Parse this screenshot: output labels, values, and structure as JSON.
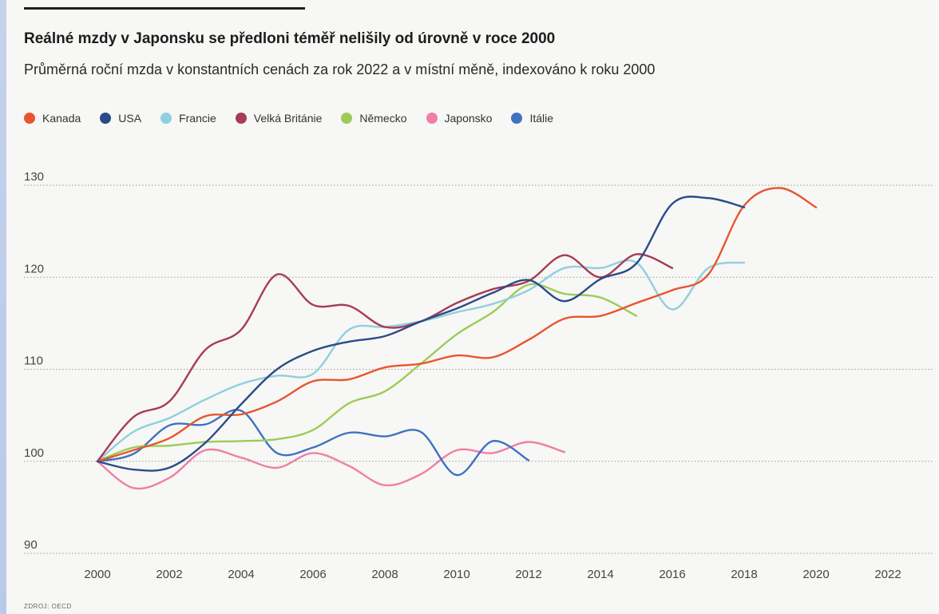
{
  "header": {
    "title": "Reálné mzdy v Japonsku se předloni téměř nelišily od úrovně v roce 2000",
    "subtitle": "Průměrná roční mzda v konstantních cenách za rok 2022 a v místní měně, indexováno k roku 2000"
  },
  "source": "ZDROJ: OECD",
  "chart_data": {
    "type": "line",
    "title": "Reálné mzdy v Japonsku se předloni téměř nelišily od úrovně v roce 2000",
    "subtitle": "Průměrná roční mzda v konstantních cenách za rok 2022 a v místní měně, indexováno k roku 2000",
    "xlabel": "",
    "ylabel": "",
    "x": [
      2000,
      2001,
      2002,
      2003,
      2004,
      2005,
      2006,
      2007,
      2008,
      2009,
      2010,
      2011,
      2012,
      2013,
      2014,
      2015,
      2016,
      2017,
      2018,
      2019,
      2020,
      2021,
      2022
    ],
    "x_ticks": [
      "2000",
      "2002",
      "2004",
      "2006",
      "2008",
      "2010",
      "2012",
      "2014",
      "2016",
      "2018",
      "2020",
      "2022"
    ],
    "y_ticks": [
      "90",
      "100",
      "110",
      "120",
      "130"
    ],
    "xlim": [
      2000,
      2022
    ],
    "ylim": [
      90,
      130
    ],
    "grid": "horizontal dotted",
    "legend_position": "top",
    "series": [
      {
        "name": "Kanada",
        "color": "#e8552f",
        "values": [
          100,
          101.2,
          102.5,
          104.9,
          105.1,
          106.5,
          108.7,
          108.9,
          110.2,
          110.6,
          111.5,
          111.3,
          113.2,
          115.5,
          115.8,
          117.2,
          118.6,
          120.3,
          127.8,
          129.7,
          127.6,
          null,
          null
        ]
      },
      {
        "name": "USA",
        "color": "#2c4a8a",
        "values": [
          100,
          99.1,
          99.3,
          102,
          106.2,
          110,
          112,
          113,
          113.6,
          115.2,
          116.6,
          118.3,
          119.7,
          117.4,
          119.8,
          121.5,
          128,
          128.6,
          127.6,
          null,
          null,
          null,
          null
        ]
      },
      {
        "name": "Francie",
        "color": "#8fd0de",
        "values": [
          100,
          103.2,
          104.7,
          106.7,
          108.4,
          109.3,
          109.5,
          114.3,
          114.6,
          115.2,
          116.2,
          117.1,
          118.6,
          121,
          121,
          121.6,
          116.5,
          121,
          121.6,
          null,
          null,
          null,
          null
        ]
      },
      {
        "name": "Velká Británie",
        "color": "#a63c55",
        "values": [
          100,
          104.8,
          106.5,
          112.1,
          114.3,
          120.3,
          117,
          116.9,
          114.6,
          115.2,
          117.2,
          118.7,
          119.6,
          122.4,
          120,
          122.5,
          121,
          null,
          null,
          null,
          null,
          null,
          null
        ]
      },
      {
        "name": "Německo",
        "color": "#9ccc56",
        "values": [
          100,
          101.5,
          101.7,
          102.1,
          102.2,
          102.4,
          103.4,
          106.3,
          107.6,
          110.6,
          113.8,
          116.2,
          119.2,
          118.2,
          117.8,
          115.8,
          null,
          null,
          null,
          null,
          null,
          null,
          null
        ]
      },
      {
        "name": "Japonsko",
        "color": "#ef7fa5",
        "values": [
          100,
          97.1,
          98.2,
          101.2,
          100.4,
          99.3,
          100.9,
          99.5,
          97.4,
          98.6,
          101.2,
          100.9,
          102.1,
          101,
          null,
          null,
          null,
          null,
          null,
          null,
          null,
          null,
          null
        ]
      },
      {
        "name": "Itálie",
        "color": "#3f73bf",
        "values": [
          100,
          100.8,
          103.9,
          104,
          105.5,
          100.9,
          101.5,
          103.1,
          102.7,
          103.2,
          98.5,
          102.2,
          100.1,
          null,
          null,
          null,
          null,
          null,
          null,
          null,
          null,
          null,
          null
        ]
      }
    ]
  }
}
